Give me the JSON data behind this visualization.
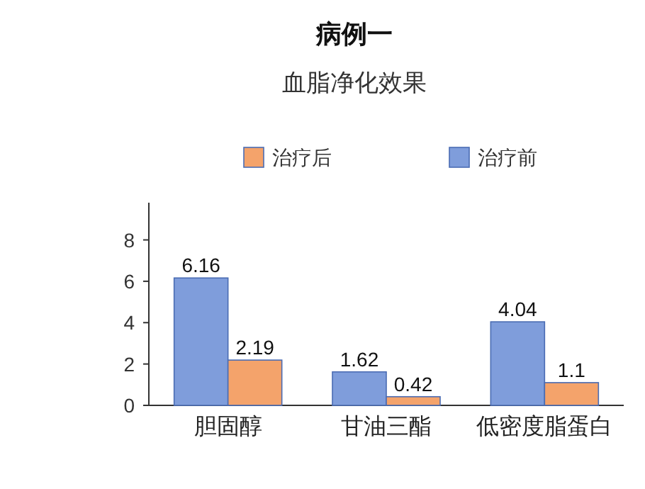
{
  "chart_data": {
    "type": "bar",
    "title": "病例一",
    "subtitle": "血脂净化效果",
    "categories": [
      "胆固醇",
      "甘油三酯",
      "低密度脂蛋白"
    ],
    "series": [
      {
        "name": "治疗前",
        "color": "#7f9ddb",
        "values": [
          6.16,
          1.62,
          4.04
        ]
      },
      {
        "name": "治疗后",
        "color": "#f4a36b",
        "values": [
          2.19,
          0.42,
          1.1
        ]
      }
    ],
    "ylim": [
      0,
      9.8
    ],
    "yticks": [
      0,
      2,
      4,
      6,
      8
    ],
    "data_labels": true,
    "legend": "top",
    "grid": false
  }
}
